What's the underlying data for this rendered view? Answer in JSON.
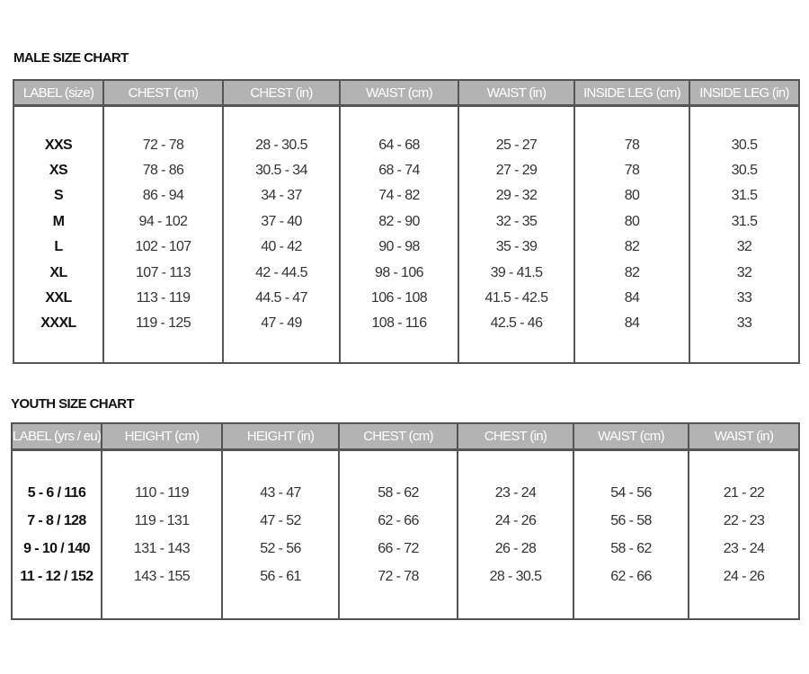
{
  "male": {
    "title": "MALE SIZE CHART",
    "headers": [
      "LABEL (size)",
      "CHEST (cm)",
      "CHEST (in)",
      "WAIST (cm)",
      "WAIST (in)",
      "INSIDE LEG (cm)",
      "INSIDE LEG (in)"
    ],
    "rows": [
      [
        "XXS",
        "72 - 78",
        "28 - 30.5",
        "64 - 68",
        "25 - 27",
        "78",
        "30.5"
      ],
      [
        "XS",
        "78 - 86",
        "30.5 - 34",
        "68 - 74",
        "27 - 29",
        "78",
        "30.5"
      ],
      [
        "S",
        "86 - 94",
        "34 - 37",
        "74 - 82",
        "29 - 32",
        "80",
        "31.5"
      ],
      [
        "M",
        "94 - 102",
        "37 - 40",
        "82 - 90",
        "32 - 35",
        "80",
        "31.5"
      ],
      [
        "L",
        "102 - 107",
        "40 - 42",
        "90 - 98",
        "35 - 39",
        "82",
        "32"
      ],
      [
        "XL",
        "107 - 113",
        "42 - 44.5",
        "98 - 106",
        "39 - 41.5",
        "82",
        "32"
      ],
      [
        "XXL",
        "113 - 119",
        "44.5 - 47",
        "106 - 108",
        "41.5 - 42.5",
        "84",
        "33"
      ],
      [
        "XXXL",
        "119 - 125",
        "47 - 49",
        "108 - 116",
        "42.5 - 46",
        "84",
        "33"
      ]
    ]
  },
  "youth": {
    "title": "YOUTH SIZE CHART",
    "headers": [
      "LABEL (yrs / eu)",
      "HEIGHT (cm)",
      "HEIGHT (in)",
      "CHEST (cm)",
      "CHEST (in)",
      "WAIST (cm)",
      "WAIST (in)"
    ],
    "rows": [
      [
        "5 - 6 / 116",
        "110 - 119",
        "43 - 47",
        "58 - 62",
        "23 - 24",
        "54 - 56",
        "21 - 22"
      ],
      [
        "7 - 8 / 128",
        "119 - 131",
        "47 - 52",
        "62 - 66",
        "24 - 26",
        "56 - 58",
        "22 - 23"
      ],
      [
        "9 - 10 / 140",
        "131 - 143",
        "52 - 56",
        "66 - 72",
        "26 - 28",
        "58 - 62",
        "23 - 24"
      ],
      [
        "11 - 12 / 152",
        "143 - 155",
        "56 - 61",
        "72 - 78",
        "28 - 30.5",
        "62 - 66",
        "24 - 26"
      ]
    ]
  },
  "colors": {
    "header_bg": "#b3b3b3",
    "header_text": "#ffffff",
    "border": "#555555"
  }
}
